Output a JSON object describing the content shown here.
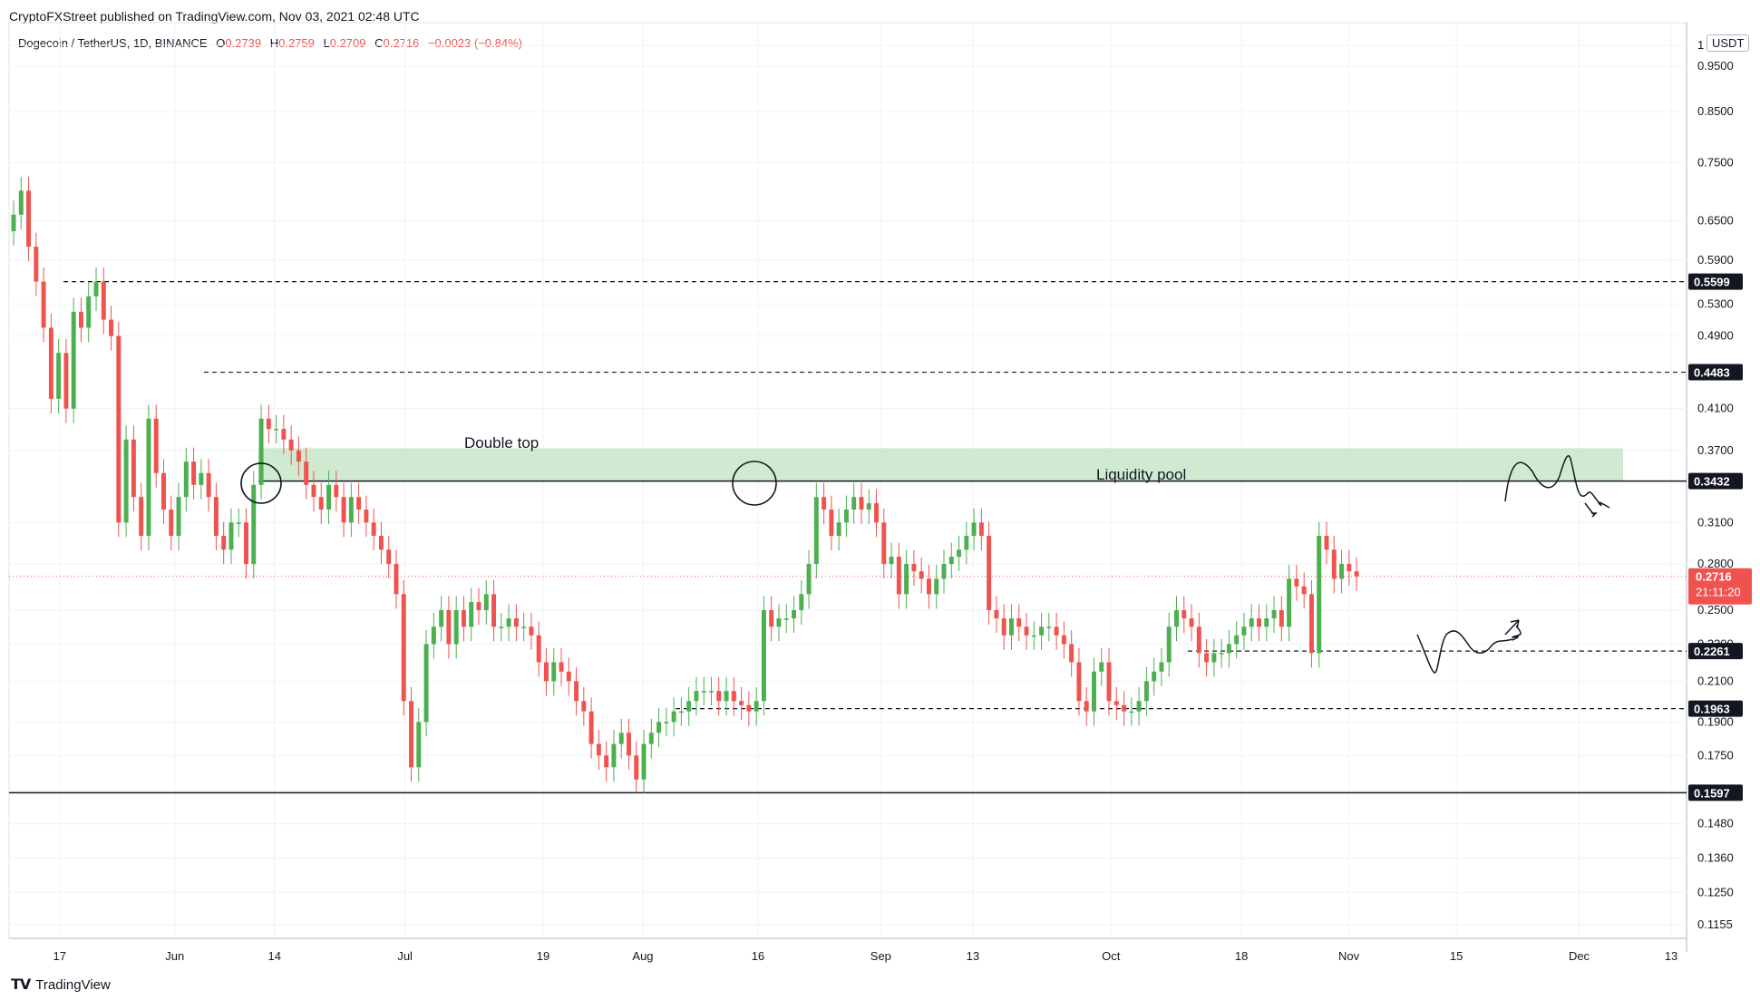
{
  "header": {
    "published": "CryptoFXStreet published on TradingView.com, Nov 03, 2021 02:48 UTC",
    "symbol": "Dogecoin / TetherUS, 1D, BINANCE",
    "o_label": "O",
    "o_value": "0.2739",
    "h_label": "H",
    "h_value": "0.2759",
    "l_label": "L",
    "l_value": "0.2709",
    "c_label": "C",
    "c_value": "0.2716",
    "change": "−0.0023 (−0.84%)"
  },
  "currency_badge": "USDT",
  "brand": "TradingView",
  "colors": {
    "up": "#26a69a",
    "up_candle": "#4caf50",
    "down": "#ef5350",
    "zone": "#c8e6c9",
    "line": "#131722"
  },
  "chart_data": {
    "type": "candlestick",
    "scale": "log",
    "ylim": [
      0.1155,
      1.0
    ],
    "y_ticks": [
      "1",
      "0.9500",
      "0.8500",
      "0.7500",
      "0.6500",
      "0.5900",
      "0.5300",
      "0.4900",
      "0.4100",
      "0.3700",
      "0.3100",
      "0.2800",
      "0.2500",
      "0.2300",
      "0.2100",
      "0.1900",
      "0.1750",
      "0.1480",
      "0.1360",
      "0.1250",
      "0.1155"
    ],
    "x_ticks": [
      "17",
      "Jun",
      "14",
      "Jul",
      "19",
      "Aug",
      "16",
      "Sep",
      "13",
      "Oct",
      "18",
      "Nov",
      "15",
      "Dec",
      "13"
    ],
    "x_range": [
      "2021-05-11",
      "2021-12-15"
    ],
    "last_price": "0.2716",
    "countdown": "21:11:20",
    "levels": [
      {
        "price": 0.5599,
        "label": "0.5599",
        "style": "dashed"
      },
      {
        "price": 0.4483,
        "label": "0.4483",
        "style": "dashed"
      },
      {
        "price": 0.3432,
        "label": "0.3432",
        "style": "solid"
      },
      {
        "price": 0.2261,
        "label": "0.2261",
        "style": "dashed"
      },
      {
        "price": 0.1963,
        "label": "0.1963",
        "style": "dashed"
      },
      {
        "price": 0.1597,
        "label": "0.1597",
        "style": "solid"
      }
    ],
    "zone": {
      "label": "Liquidity pool",
      "from": 0.3432,
      "to": 0.372
    },
    "annotations": [
      "Double top",
      "Liquidity pool"
    ],
    "price_path": [
      0.66,
      0.7,
      0.61,
      0.56,
      0.5,
      0.42,
      0.47,
      0.41,
      0.52,
      0.5,
      0.54,
      0.56,
      0.51,
      0.49,
      0.31,
      0.38,
      0.33,
      0.3,
      0.4,
      0.35,
      0.32,
      0.3,
      0.33,
      0.36,
      0.34,
      0.35,
      0.33,
      0.3,
      0.29,
      0.31,
      0.31,
      0.28,
      0.34,
      0.4,
      0.39,
      0.39,
      0.38,
      0.37,
      0.36,
      0.34,
      0.33,
      0.32,
      0.34,
      0.33,
      0.31,
      0.33,
      0.32,
      0.31,
      0.3,
      0.29,
      0.28,
      0.26,
      0.2,
      0.17,
      0.19,
      0.23,
      0.24,
      0.25,
      0.23,
      0.25,
      0.24,
      0.255,
      0.25,
      0.26,
      0.24,
      0.24,
      0.245,
      0.24,
      0.24,
      0.235,
      0.22,
      0.21,
      0.22,
      0.215,
      0.21,
      0.2,
      0.195,
      0.18,
      0.175,
      0.17,
      0.18,
      0.185,
      0.175,
      0.165,
      0.18,
      0.185,
      0.19,
      0.19,
      0.195,
      0.195,
      0.2,
      0.205,
      0.205,
      0.205,
      0.2,
      0.205,
      0.2,
      0.198,
      0.195,
      0.2,
      0.25,
      0.24,
      0.245,
      0.245,
      0.25,
      0.26,
      0.28,
      0.33,
      0.32,
      0.3,
      0.31,
      0.32,
      0.33,
      0.32,
      0.325,
      0.31,
      0.28,
      0.285,
      0.26,
      0.28,
      0.275,
      0.27,
      0.26,
      0.27,
      0.28,
      0.285,
      0.29,
      0.3,
      0.31,
      0.3,
      0.25,
      0.245,
      0.235,
      0.245,
      0.24,
      0.235,
      0.235,
      0.24,
      0.24,
      0.235,
      0.23,
      0.22,
      0.2,
      0.195,
      0.215,
      0.22,
      0.2,
      0.198,
      0.195,
      0.195,
      0.2,
      0.21,
      0.215,
      0.22,
      0.24,
      0.25,
      0.245,
      0.24,
      0.225,
      0.22,
      0.225,
      0.225,
      0.23,
      0.235,
      0.24,
      0.245,
      0.24,
      0.245,
      0.25,
      0.24,
      0.27,
      0.265,
      0.26,
      0.225,
      0.3,
      0.29,
      0.27,
      0.28,
      0.275,
      0.2716
    ]
  }
}
